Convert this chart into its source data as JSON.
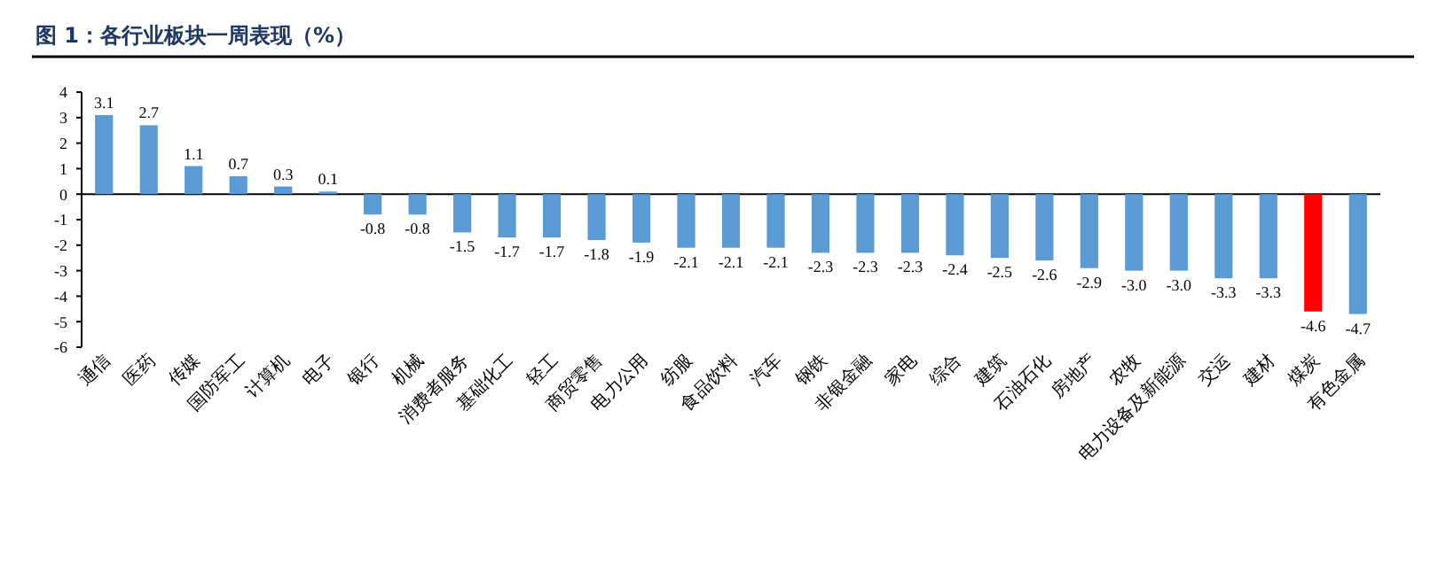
{
  "chart_data": {
    "type": "bar",
    "title": "图 1：各行业板块一周表现（%）",
    "categories": [
      "通信",
      "医药",
      "传媒",
      "国防军工",
      "计算机",
      "电子",
      "银行",
      "机械",
      "消费者服务",
      "基础化工",
      "轻工",
      "商贸零售",
      "电力公用",
      "纺服",
      "食品饮料",
      "汽车",
      "钢铁",
      "非银金融",
      "家电",
      "综合",
      "建筑",
      "石油石化",
      "房地产",
      "农牧",
      "电力设备及新能源",
      "交运",
      "建材",
      "煤炭",
      "有色金属"
    ],
    "values": [
      3.1,
      2.7,
      1.1,
      0.7,
      0.3,
      0.1,
      -0.8,
      -0.8,
      -1.5,
      -1.7,
      -1.7,
      -1.8,
      -1.9,
      -2.1,
      -2.1,
      -2.1,
      -2.3,
      -2.3,
      -2.3,
      -2.4,
      -2.5,
      -2.6,
      -2.9,
      -3.0,
      -3.0,
      -3.3,
      -3.3,
      -4.6,
      -4.7
    ],
    "colors": [
      "#5b9bd5",
      "#5b9bd5",
      "#5b9bd5",
      "#5b9bd5",
      "#5b9bd5",
      "#5b9bd5",
      "#5b9bd5",
      "#5b9bd5",
      "#5b9bd5",
      "#5b9bd5",
      "#5b9bd5",
      "#5b9bd5",
      "#5b9bd5",
      "#5b9bd5",
      "#5b9bd5",
      "#5b9bd5",
      "#5b9bd5",
      "#5b9bd5",
      "#5b9bd5",
      "#5b9bd5",
      "#5b9bd5",
      "#5b9bd5",
      "#5b9bd5",
      "#5b9bd5",
      "#5b9bd5",
      "#5b9bd5",
      "#5b9bd5",
      "#ff0000",
      "#5b9bd5"
    ],
    "value_labels": [
      "3.1",
      "2.7",
      "1.1",
      "0.7",
      "0.3",
      "0.1",
      "-0.8",
      "-0.8",
      "-1.5",
      "-1.7",
      "-1.7",
      "-1.8",
      "-1.9",
      "-2.1",
      "-2.1",
      "-2.1",
      "-2.3",
      "-2.3",
      "-2.3",
      "-2.4",
      "-2.5",
      "-2.6",
      "-2.9",
      "-3.0",
      "-3.0",
      "-3.3",
      "-3.3",
      "-4.6",
      "-4.7"
    ],
    "ylim": [
      -6,
      4
    ],
    "yticks": [
      -6,
      -5,
      -4,
      -3,
      -2,
      -1,
      0,
      1,
      2,
      3,
      4
    ]
  }
}
